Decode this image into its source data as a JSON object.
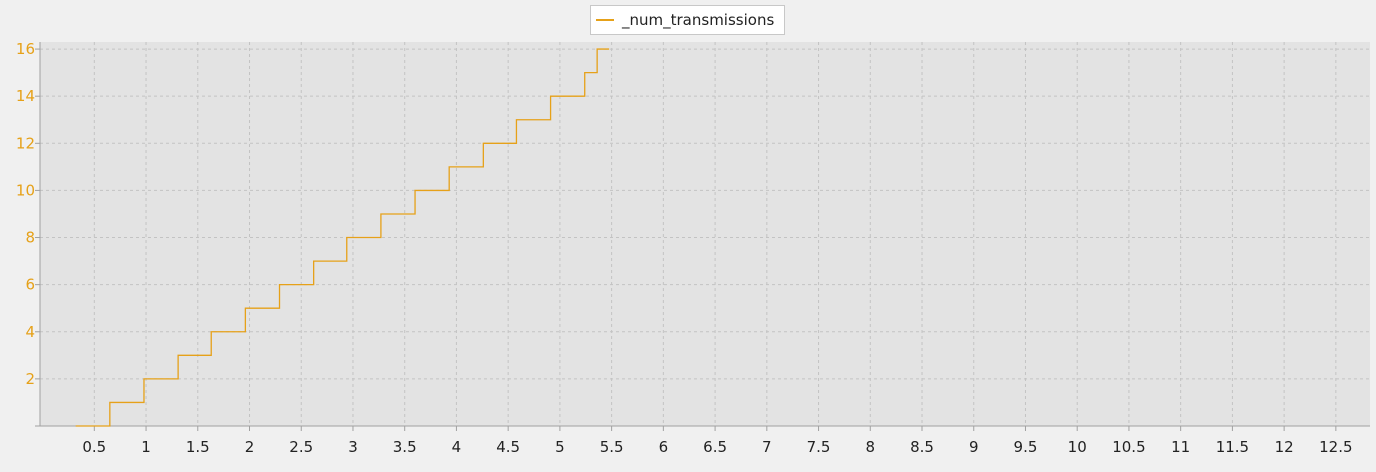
{
  "chart_data": {
    "type": "line",
    "step": "post",
    "title": "",
    "xlabel": "",
    "ylabel": "",
    "xlim": [
      -0.025,
      12.83
    ],
    "ylim": [
      0,
      16.3
    ],
    "grid": true,
    "legend_position": "top-center",
    "x_ticks": [
      "0.5",
      "1",
      "1.5",
      "2",
      "2.5",
      "3",
      "3.5",
      "4",
      "4.5",
      "5",
      "5.5",
      "6",
      "6.5",
      "7",
      "7.5",
      "8",
      "8.5",
      "9",
      "9.5",
      "10",
      "10.5",
      "11",
      "11.5",
      "12",
      "12.5"
    ],
    "y_ticks": [
      "2",
      "4",
      "6",
      "8",
      "10",
      "12",
      "14",
      "16"
    ],
    "series": [
      {
        "name": "_num_transmissions",
        "color": "#e6a119",
        "x": [
          0.32,
          0.65,
          0.98,
          1.31,
          1.63,
          1.96,
          2.29,
          2.62,
          2.94,
          3.27,
          3.6,
          3.93,
          4.26,
          4.58,
          4.91,
          5.24,
          5.36
        ],
        "y": [
          0,
          1,
          2,
          3,
          4,
          5,
          6,
          7,
          8,
          9,
          10,
          11,
          12,
          13,
          14,
          15,
          16
        ]
      }
    ]
  },
  "colors": {
    "plot_background": "#e3e3e3",
    "grid": "#c3c3c3",
    "axis": "#a0a0a0",
    "y_tick_label": "#e6a119",
    "x_tick_label": "#222222"
  }
}
